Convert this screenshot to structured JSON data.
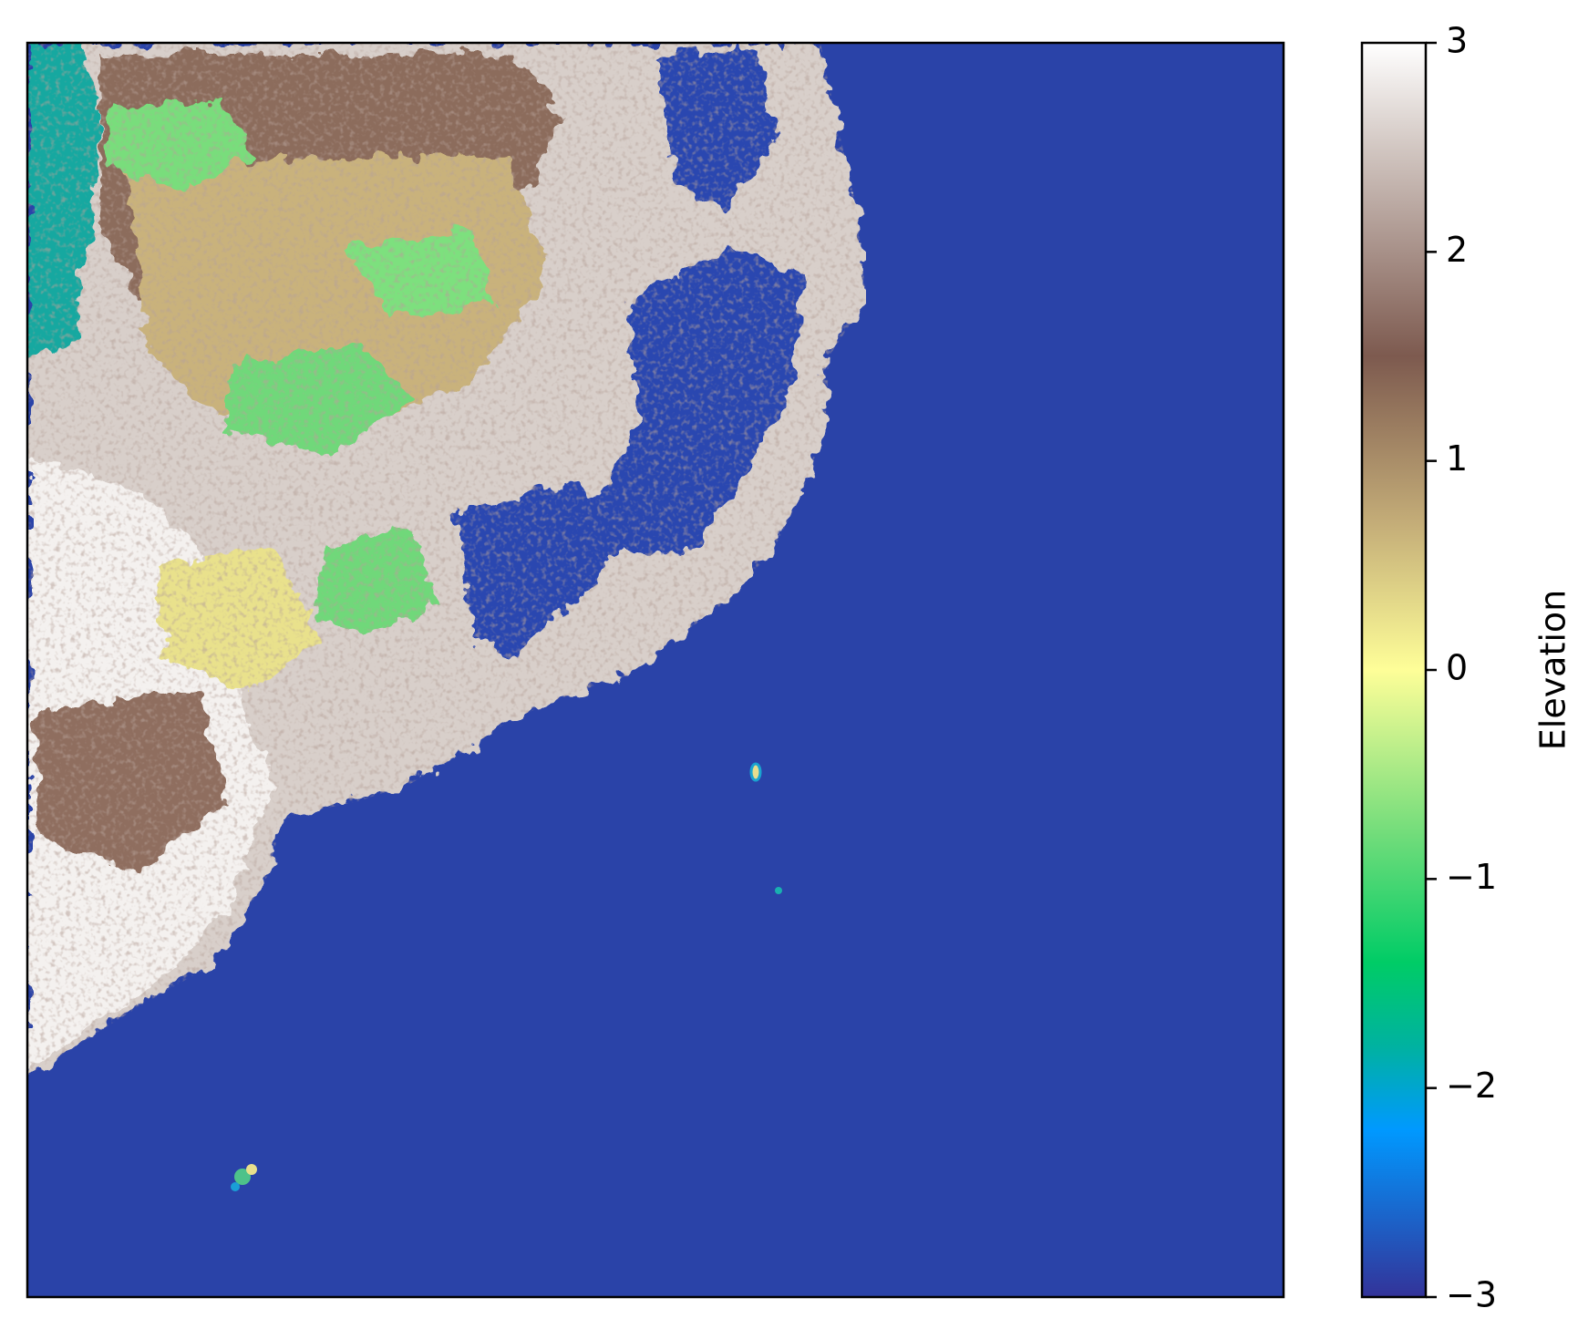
{
  "chart_data": {
    "type": "heatmap",
    "title": "",
    "xlabel": "",
    "ylabel": "",
    "colormap": "terrain",
    "colorbar": {
      "label": "Elevation",
      "range": [
        -3,
        3
      ],
      "ticks": [
        {
          "value": 3,
          "label": "3"
        },
        {
          "value": 2,
          "label": "2"
        },
        {
          "value": 1,
          "label": "1"
        },
        {
          "value": 0,
          "label": "0"
        },
        {
          "value": -1,
          "label": "−1"
        },
        {
          "value": -2,
          "label": "−2"
        },
        {
          "value": -3,
          "label": "−3"
        }
      ],
      "stops": [
        {
          "value": 3.0,
          "color": "#ffffff"
        },
        {
          "value": 2.5,
          "color": "#d2c7c2"
        },
        {
          "value": 1.5,
          "color": "#7d5a4f"
        },
        {
          "value": 0.7,
          "color": "#c4ad78"
        },
        {
          "value": 0.0,
          "color": "#fefe98"
        },
        {
          "value": -0.8,
          "color": "#6fdc7a"
        },
        {
          "value": -1.4,
          "color": "#00cc66"
        },
        {
          "value": -1.8,
          "color": "#00b2a0"
        },
        {
          "value": -2.2,
          "color": "#0099ff"
        },
        {
          "value": -2.6,
          "color": "#1a66cc"
        },
        {
          "value": -3.0,
          "color": "#333399"
        }
      ]
    },
    "axes_ticks_visible": false,
    "sea_color": "#2a43a8"
  }
}
